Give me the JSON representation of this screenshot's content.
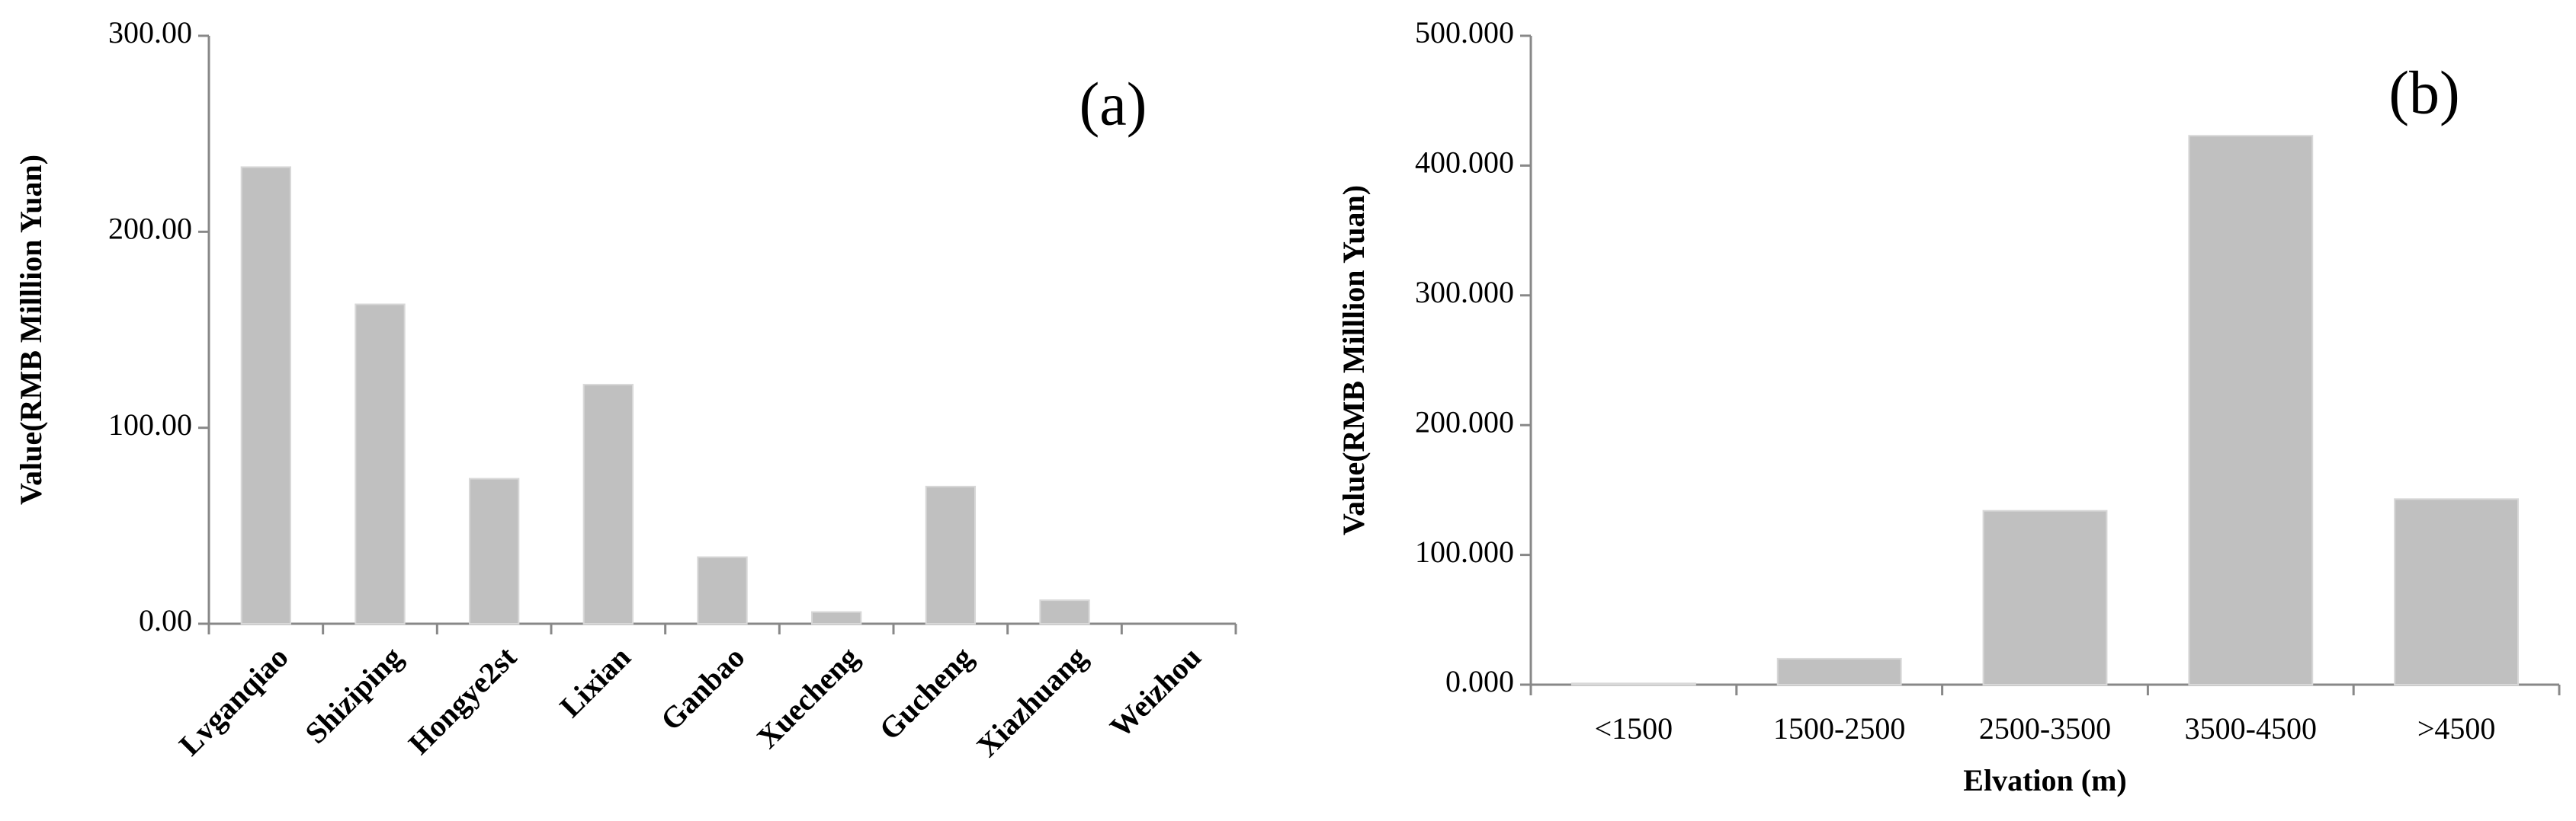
{
  "chart_data": [
    {
      "type": "bar",
      "annotation": "(a)",
      "y_label": "Value(RMB Milllion  Yuan)",
      "categories": [
        "Lvganqiao",
        "Shiziping",
        "Hongye2st",
        "Lixian",
        "Ganbao",
        "Xuecheng",
        "Gucheng",
        "Xiazhuang",
        "Weizhou"
      ],
      "values": [
        233,
        163,
        74,
        122,
        34,
        6,
        70,
        12,
        0
      ],
      "color": "#c0c0c0",
      "ylim": [
        0,
        300
      ],
      "yticks": [
        {
          "value": 0,
          "label": "0.00"
        },
        {
          "value": 100,
          "label": "100.00"
        },
        {
          "value": 200,
          "label": "200.00"
        },
        {
          "value": 300,
          "label": "300.00"
        }
      ]
    },
    {
      "type": "bar",
      "annotation": "(b)",
      "y_label": "Value(RMB Milllion  Yuan)",
      "x_label": "Elvation (m)",
      "categories": [
        "<1500",
        "1500-2500",
        "2500-3500",
        "3500-4500",
        ">4500"
      ],
      "values": [
        1,
        20,
        134,
        423,
        143
      ],
      "color": "#c0c0c0",
      "ylim": [
        0,
        500
      ],
      "yticks": [
        {
          "value": 0,
          "label": "0.000"
        },
        {
          "value": 100,
          "label": "100.000"
        },
        {
          "value": 200,
          "label": "200.000"
        },
        {
          "value": 300,
          "label": "300.000"
        },
        {
          "value": 400,
          "label": "400.000"
        },
        {
          "value": 500,
          "label": "500.000"
        }
      ]
    }
  ]
}
